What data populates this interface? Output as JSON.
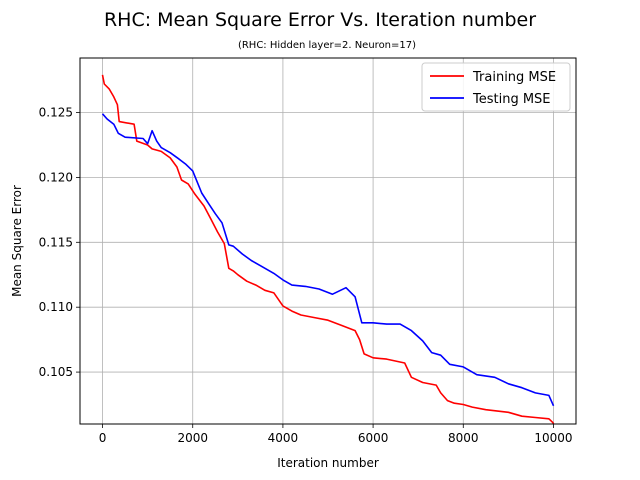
{
  "chart_data": {
    "type": "line",
    "title": "RHC: Mean Square Error Vs. Iteration number",
    "subtitle": "(RHC: Hidden layer=2. Neuron=17)",
    "xlabel": "Iteration number",
    "ylabel": "Mean Square Error",
    "xlim": [
      -500,
      10500
    ],
    "ylim": [
      0.101,
      0.1292
    ],
    "x_ticks": [
      0,
      2000,
      4000,
      6000,
      8000,
      10000
    ],
    "x_tick_labels": [
      "0",
      "2000",
      "4000",
      "6000",
      "8000",
      "10000"
    ],
    "y_ticks": [
      0.105,
      0.11,
      0.115,
      0.12,
      0.125
    ],
    "y_tick_labels": [
      "0.105",
      "0.110",
      "0.115",
      "0.120",
      "0.125"
    ],
    "grid": true,
    "legend_position": "top-right",
    "series": [
      {
        "name": "Training MSE",
        "color": "#ff0000",
        "points": [
          [
            0,
            0.1279
          ],
          [
            40,
            0.1272
          ],
          [
            150,
            0.1268
          ],
          [
            250,
            0.1262
          ],
          [
            330,
            0.1256
          ],
          [
            370,
            0.1243
          ],
          [
            700,
            0.1241
          ],
          [
            760,
            0.1228
          ],
          [
            1000,
            0.1225
          ],
          [
            1100,
            0.1222
          ],
          [
            1300,
            0.122
          ],
          [
            1500,
            0.1215
          ],
          [
            1650,
            0.1208
          ],
          [
            1750,
            0.1198
          ],
          [
            1900,
            0.1195
          ],
          [
            2050,
            0.1187
          ],
          [
            2250,
            0.1178
          ],
          [
            2400,
            0.1168
          ],
          [
            2550,
            0.1158
          ],
          [
            2700,
            0.1149
          ],
          [
            2800,
            0.113
          ],
          [
            2900,
            0.1128
          ],
          [
            3000,
            0.1125
          ],
          [
            3200,
            0.112
          ],
          [
            3400,
            0.1117
          ],
          [
            3600,
            0.1113
          ],
          [
            3800,
            0.1111
          ],
          [
            4000,
            0.1101
          ],
          [
            4200,
            0.1097
          ],
          [
            4400,
            0.1094
          ],
          [
            4700,
            0.1092
          ],
          [
            5000,
            0.109
          ],
          [
            5300,
            0.1086
          ],
          [
            5600,
            0.1082
          ],
          [
            5700,
            0.1075
          ],
          [
            5800,
            0.1064
          ],
          [
            6000,
            0.1061
          ],
          [
            6300,
            0.106
          ],
          [
            6700,
            0.1057
          ],
          [
            6850,
            0.1046
          ],
          [
            7100,
            0.1042
          ],
          [
            7400,
            0.104
          ],
          [
            7500,
            0.1034
          ],
          [
            7650,
            0.1028
          ],
          [
            7800,
            0.1026
          ],
          [
            8000,
            0.1025
          ],
          [
            8200,
            0.1023
          ],
          [
            8500,
            0.1021
          ],
          [
            9000,
            0.1019
          ],
          [
            9300,
            0.1016
          ],
          [
            9600,
            0.1015
          ],
          [
            9900,
            0.1014
          ],
          [
            9990,
            0.1011
          ],
          [
            10000,
            0.101
          ]
        ]
      },
      {
        "name": "Testing MSE",
        "color": "#0000ff",
        "points": [
          [
            0,
            0.1249
          ],
          [
            100,
            0.1245
          ],
          [
            250,
            0.1241
          ],
          [
            350,
            0.1234
          ],
          [
            500,
            0.1231
          ],
          [
            900,
            0.123
          ],
          [
            1000,
            0.1226
          ],
          [
            1100,
            0.1236
          ],
          [
            1200,
            0.1228
          ],
          [
            1300,
            0.1223
          ],
          [
            1500,
            0.1219
          ],
          [
            1700,
            0.1214
          ],
          [
            1850,
            0.121
          ],
          [
            2000,
            0.1205
          ],
          [
            2200,
            0.1188
          ],
          [
            2350,
            0.118
          ],
          [
            2500,
            0.1172
          ],
          [
            2650,
            0.1165
          ],
          [
            2800,
            0.1148
          ],
          [
            2900,
            0.1147
          ],
          [
            3100,
            0.1141
          ],
          [
            3300,
            0.1136
          ],
          [
            3500,
            0.1132
          ],
          [
            3800,
            0.1126
          ],
          [
            4000,
            0.1121
          ],
          [
            4200,
            0.1117
          ],
          [
            4500,
            0.1116
          ],
          [
            4800,
            0.1114
          ],
          [
            5100,
            0.111
          ],
          [
            5400,
            0.1115
          ],
          [
            5600,
            0.1108
          ],
          [
            5750,
            0.1088
          ],
          [
            6000,
            0.1088
          ],
          [
            6300,
            0.1087
          ],
          [
            6600,
            0.1087
          ],
          [
            6850,
            0.1082
          ],
          [
            7100,
            0.1074
          ],
          [
            7300,
            0.1065
          ],
          [
            7500,
            0.1063
          ],
          [
            7700,
            0.1056
          ],
          [
            8000,
            0.1054
          ],
          [
            8300,
            0.1048
          ],
          [
            8700,
            0.1046
          ],
          [
            9000,
            0.1041
          ],
          [
            9300,
            0.1038
          ],
          [
            9600,
            0.1034
          ],
          [
            9900,
            0.1032
          ],
          [
            10000,
            0.1024
          ]
        ]
      }
    ]
  }
}
